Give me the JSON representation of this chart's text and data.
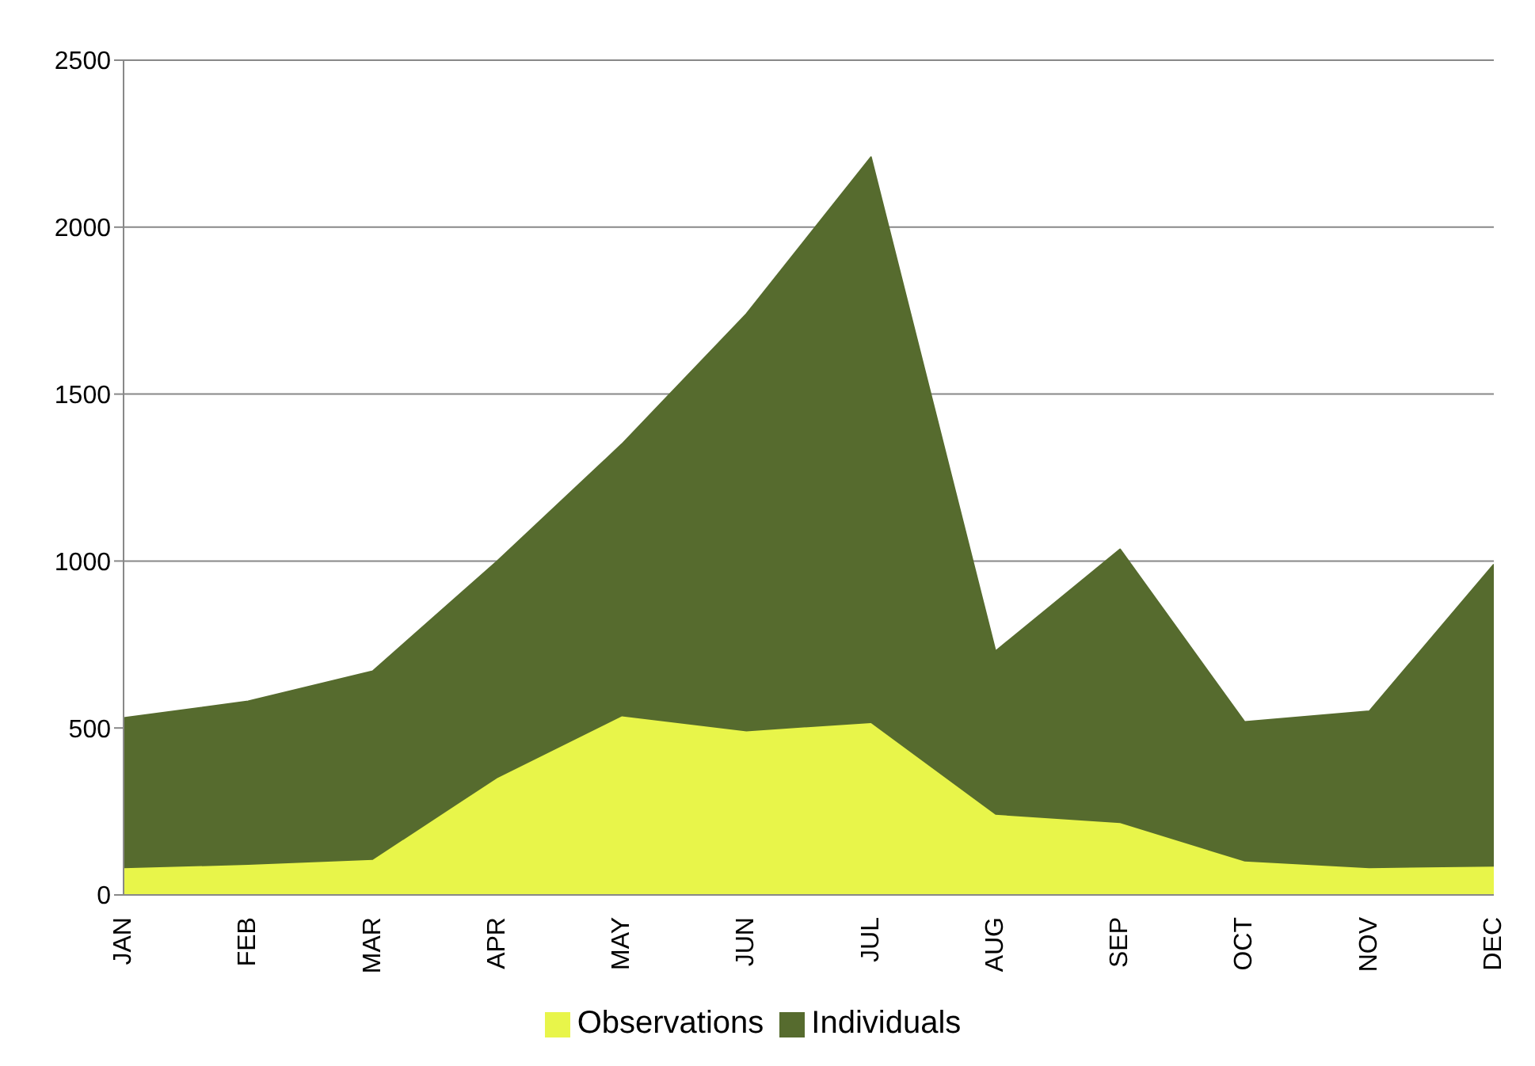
{
  "chart_data": {
    "type": "area",
    "stacked": true,
    "categories": [
      "JAN",
      "FEB",
      "MAR",
      "APR",
      "MAY",
      "JUN",
      "JUL",
      "AUG",
      "SEP",
      "OCT",
      "NOV",
      "DEC"
    ],
    "series": [
      {
        "name": "Observations",
        "color": "#e8f54a",
        "values": [
          80,
          90,
          105,
          350,
          535,
          490,
          515,
          240,
          215,
          100,
          80,
          85
        ]
      },
      {
        "name": "Individuals",
        "color": "#566b2e",
        "values": [
          450,
          490,
          565,
          650,
          815,
          1250,
          1695,
          490,
          820,
          418,
          470,
          905
        ]
      }
    ],
    "ylim": [
      0,
      2500
    ],
    "yticks": [
      0,
      500,
      1000,
      1500,
      2000,
      2500
    ],
    "grid": "y",
    "legend": "bottom"
  }
}
